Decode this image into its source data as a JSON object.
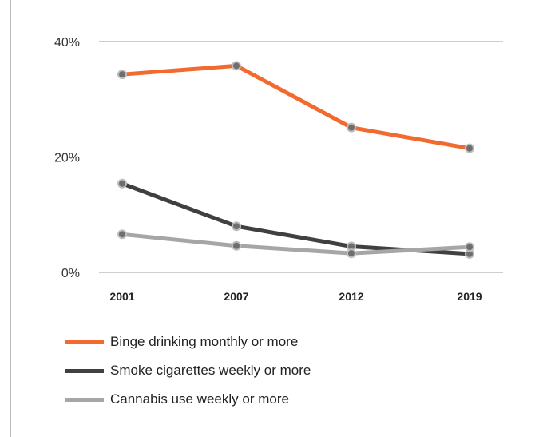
{
  "chart_data": {
    "type": "line",
    "categories": [
      "2001",
      "2007",
      "2012",
      "2019"
    ],
    "y_tick_labels": [
      "0%",
      "20%",
      "40%"
    ],
    "ylim": [
      0,
      40
    ],
    "grid": true,
    "legend_placement": "bottom",
    "series": [
      {
        "name": "Binge drinking monthly or more",
        "color": "#f26a2e",
        "values": [
          34.3,
          35.8,
          25.1,
          21.5
        ]
      },
      {
        "name": "Smoke cigarettes weekly or more",
        "color": "#404040",
        "values": [
          15.4,
          8.0,
          4.5,
          3.2
        ]
      },
      {
        "name": "Cannabis use weekly or more",
        "color": "#a6a6a6",
        "values": [
          6.6,
          4.6,
          3.3,
          4.4
        ]
      }
    ]
  }
}
